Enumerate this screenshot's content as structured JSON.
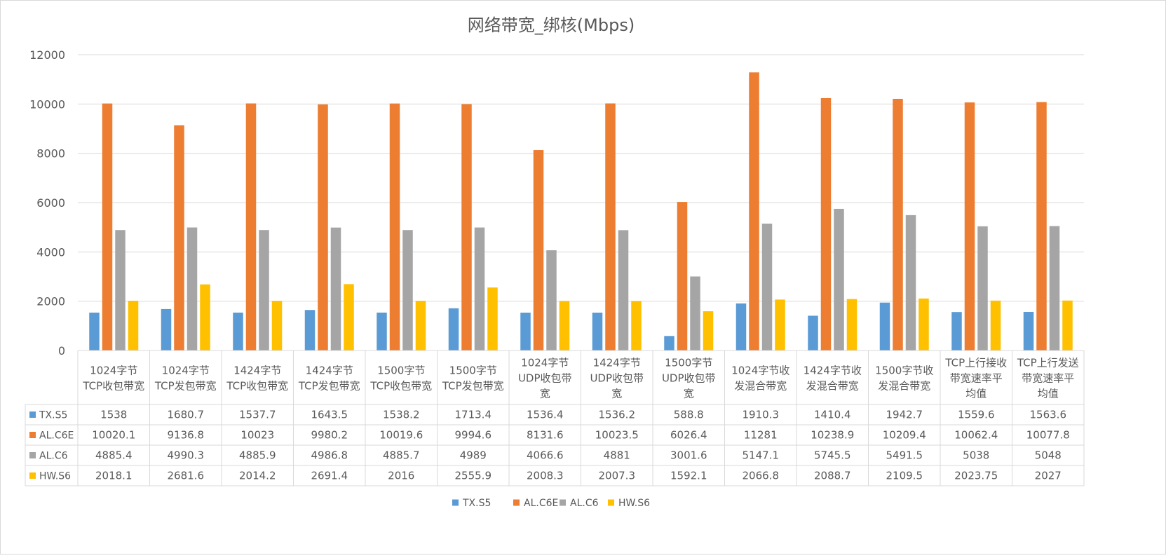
{
  "chart_data": {
    "type": "bar",
    "title": "网络带宽_绑核(Mbps)",
    "ylim": [
      0,
      12000
    ],
    "yticks": [
      0,
      2000,
      4000,
      6000,
      8000,
      10000,
      12000
    ],
    "grid": true,
    "legend_position": "bottom",
    "categories": [
      [
        "1024字节",
        "TCP收包带宽"
      ],
      [
        "1024字节",
        "TCP发包带宽"
      ],
      [
        "1424字节",
        "TCP收包带宽"
      ],
      [
        "1424字节",
        "TCP发包带宽"
      ],
      [
        "1500字节",
        "TCP收包带宽"
      ],
      [
        "1500字节",
        "TCP发包带宽"
      ],
      [
        "1024字节",
        "UDP收包带",
        "宽"
      ],
      [
        "1424字节",
        "UDP收包带",
        "宽"
      ],
      [
        "1500字节",
        "UDP收包带",
        "宽"
      ],
      [
        "1024字节收",
        "发混合带宽"
      ],
      [
        "1424字节收",
        "发混合带宽"
      ],
      [
        "1500字节收",
        "发混合带宽"
      ],
      [
        "TCP上行接收",
        "带宽速率平",
        "均值"
      ],
      [
        "TCP上行发送",
        "带宽速率平",
        "均值"
      ]
    ],
    "series": [
      {
        "name": "TX.S5",
        "color": "#5b9bd5",
        "values": [
          1538,
          1680.7,
          1537.7,
          1643.5,
          1538.2,
          1713.4,
          1536.4,
          1536.2,
          588.8,
          1910.3,
          1410.4,
          1942.7,
          1559.6,
          1563.6
        ]
      },
      {
        "name": "AL.C6E",
        "color": "#ed7d31",
        "values": [
          10020.1,
          9136.8,
          10023,
          9980.2,
          10019.6,
          9994.6,
          8131.6,
          10023.5,
          6026.4,
          11281,
          10238.9,
          10209.4,
          10062.4,
          10077.8
        ]
      },
      {
        "name": "AL.C6",
        "color": "#a5a5a5",
        "values": [
          4885.4,
          4990.3,
          4885.9,
          4986.8,
          4885.7,
          4989,
          4066.6,
          4881,
          3001.6,
          5147.1,
          5745.5,
          5491.5,
          5038,
          5048
        ]
      },
      {
        "name": "HW.S6",
        "color": "#ffc000",
        "values": [
          2018.1,
          2681.6,
          2014.2,
          2691.4,
          2016,
          2555.9,
          2008.3,
          2007.3,
          1592.1,
          2066.8,
          2088.7,
          2109.5,
          2023.75,
          2027
        ]
      }
    ]
  }
}
